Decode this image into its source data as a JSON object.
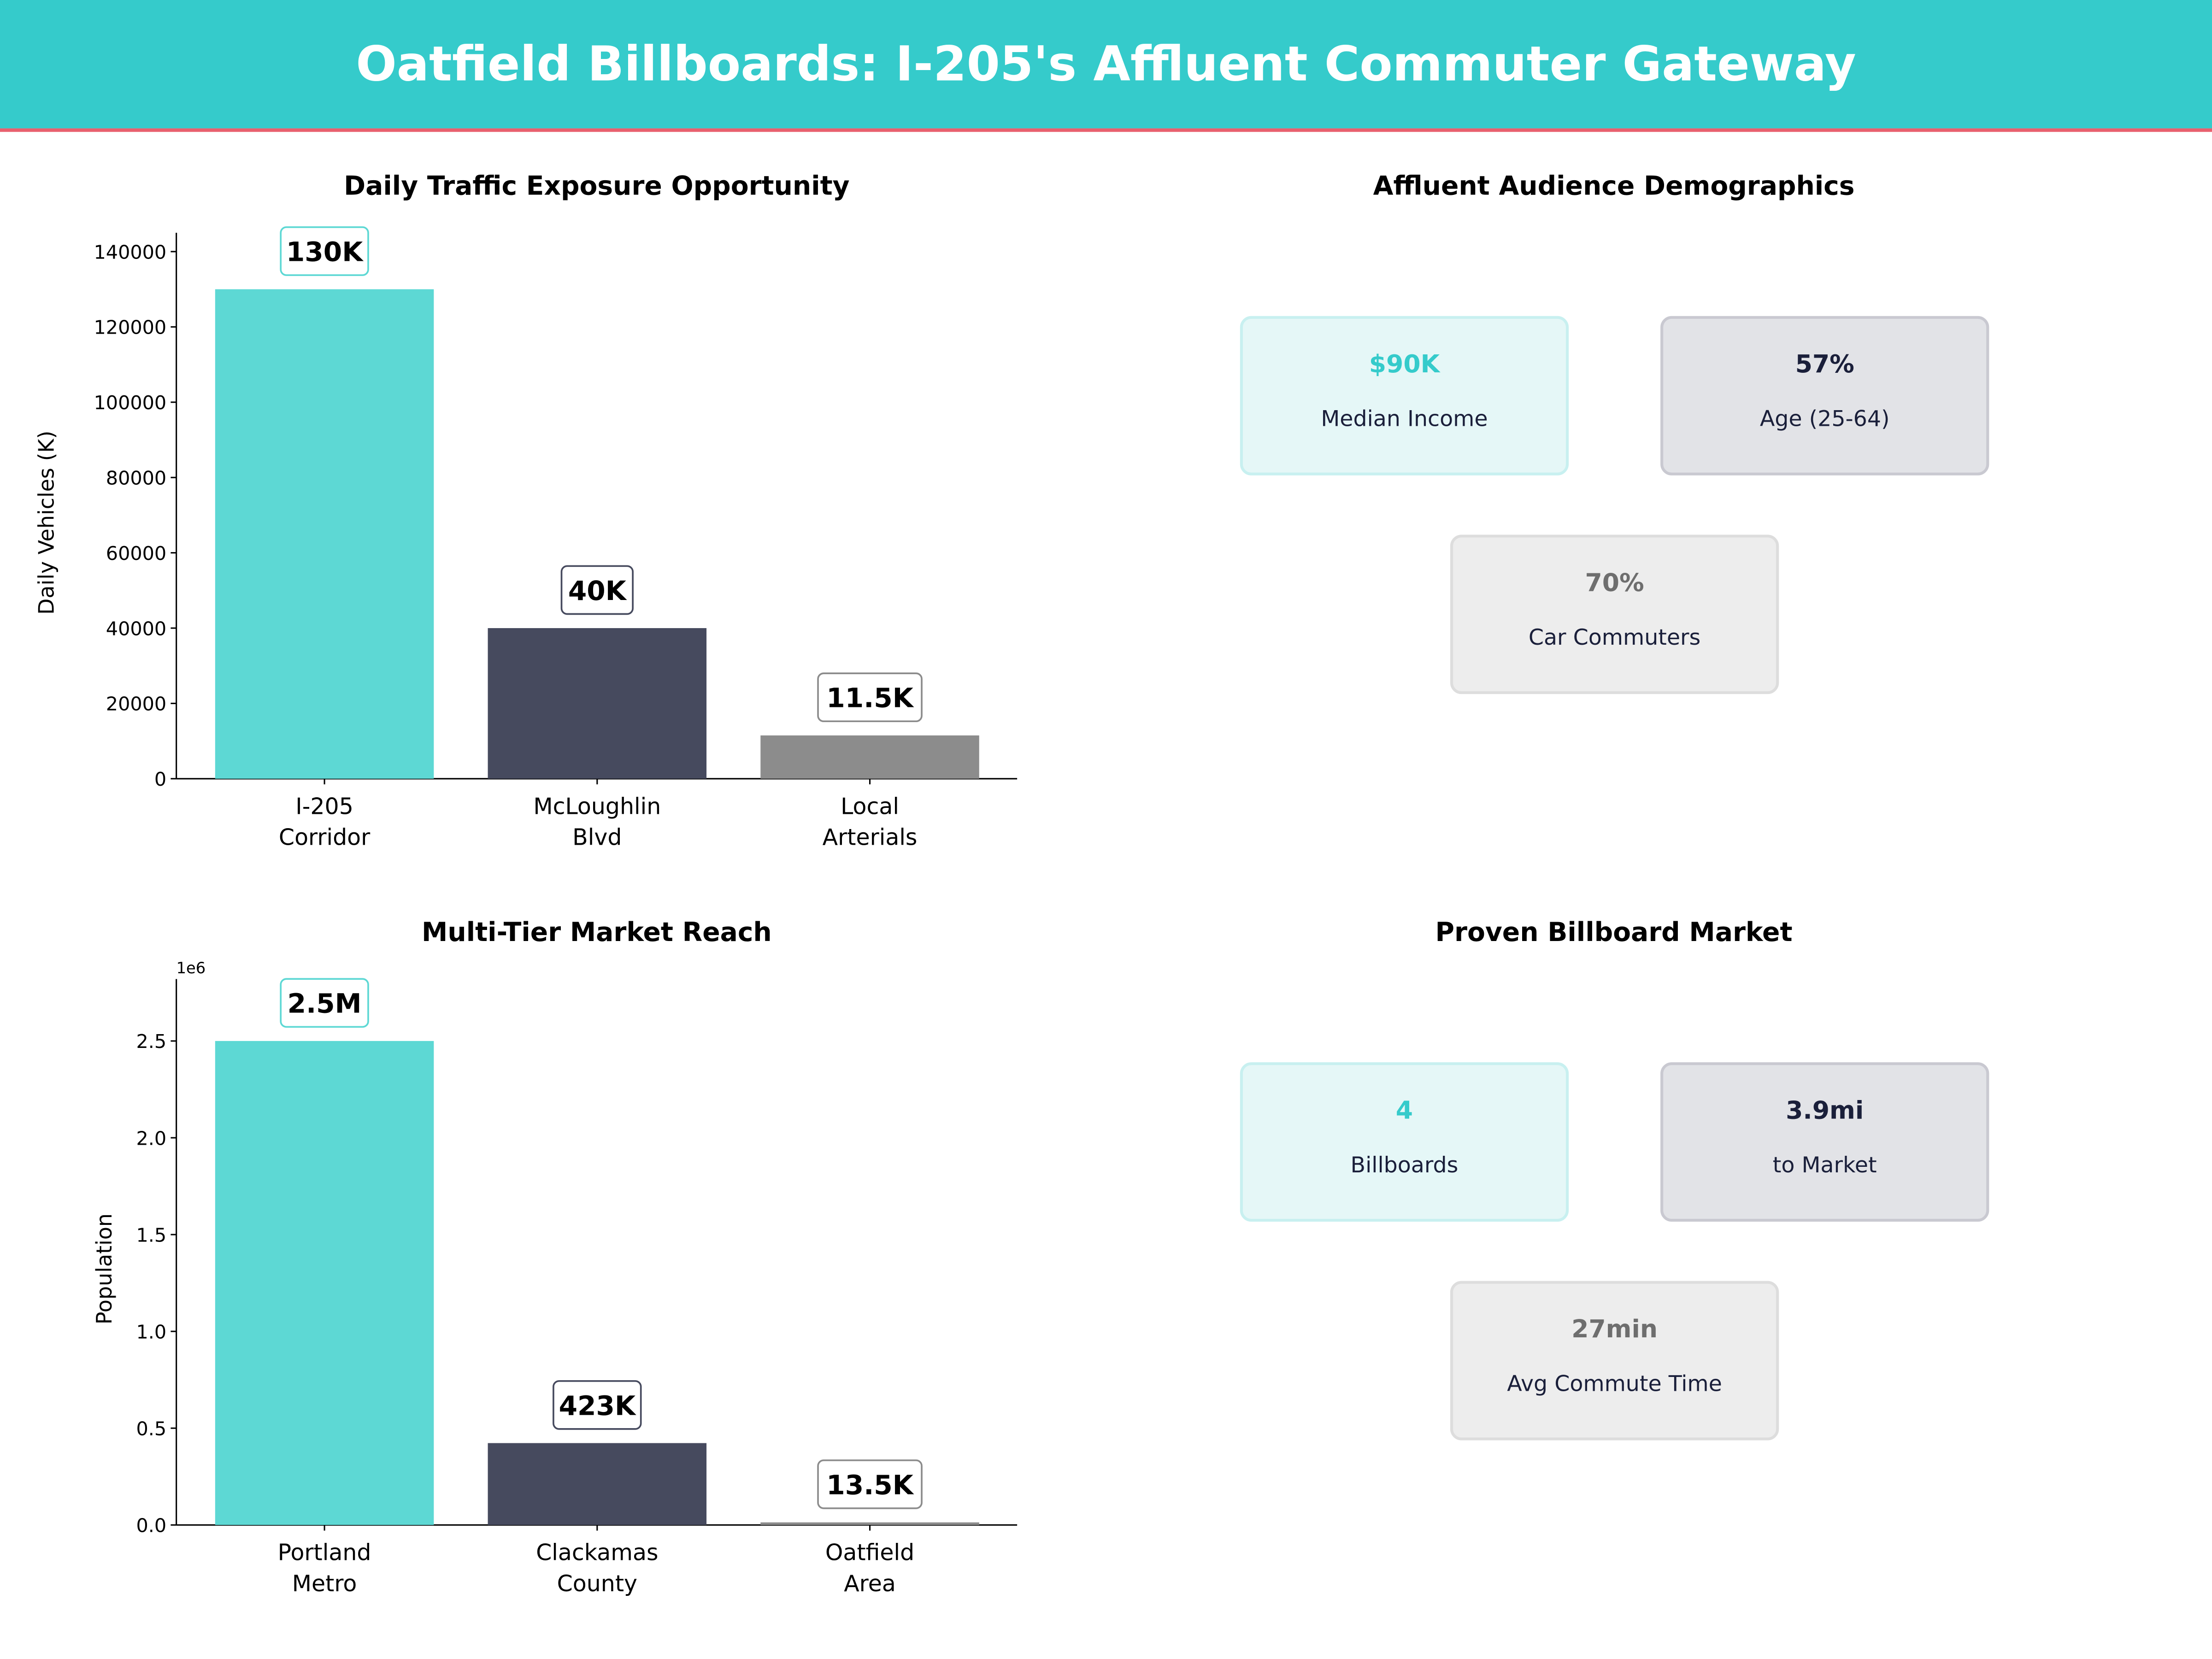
{
  "header": {
    "title": "Oatfield Billboards: I-205's Affluent Commuter Gateway",
    "bg_color": "#35CBCB",
    "accent_line": "#E8606E"
  },
  "chart_data": [
    {
      "type": "bar",
      "title": "Daily Traffic Exposure Opportunity",
      "ylabel": "Daily Vehicles (K)",
      "xlabel": "",
      "categories": [
        "I-205\nCorridor",
        "McLoughlin\nBlvd",
        "Local\nArterials"
      ],
      "values": [
        130000,
        40000,
        11500
      ],
      "data_labels": [
        "130K",
        "40K",
        "11.5K"
      ],
      "colors": [
        "#5DD8D4",
        "#464A5E",
        "#8C8C8C"
      ],
      "yticks": [
        0,
        20000,
        40000,
        60000,
        80000,
        100000,
        120000,
        140000
      ],
      "ylim": [
        0,
        145000
      ],
      "offset_text": "",
      "grid": false
    },
    {
      "type": "bar",
      "title": "Multi-Tier Market Reach",
      "ylabel": "Population",
      "xlabel": "",
      "categories": [
        "Portland\nMetro",
        "Clackamas\nCounty",
        "Oatfield\nArea"
      ],
      "values": [
        2500000,
        423000,
        13500
      ],
      "data_labels": [
        "2.5M",
        "423K",
        "13.5K"
      ],
      "colors": [
        "#5DD8D4",
        "#464A5E",
        "#8C8C8C"
      ],
      "yticks": [
        0,
        500000,
        1000000,
        1500000,
        2000000,
        2500000
      ],
      "ytick_labels": [
        "0.0",
        "0.5",
        "1.0",
        "1.5",
        "2.0",
        "2.5"
      ],
      "ylim": [
        0,
        2820000
      ],
      "offset_text": "1e6",
      "grid": false
    }
  ],
  "panels": [
    {
      "title": "Affluent Audience Demographics",
      "cards": [
        {
          "value": "$90K",
          "label": "Median Income",
          "style": "teal"
        },
        {
          "value": "57%",
          "label": "Age (25-64)",
          "style": "dark"
        },
        {
          "value": "70%",
          "label": "Car Commuters",
          "style": "gray"
        }
      ]
    },
    {
      "title": "Proven Billboard Market",
      "cards": [
        {
          "value": "4",
          "label": "Billboards",
          "style": "teal"
        },
        {
          "value": "3.9mi",
          "label": "to Market",
          "style": "dark"
        },
        {
          "value": "27min",
          "label": "Avg Commute Time",
          "style": "gray"
        }
      ]
    }
  ],
  "card_styles": {
    "teal": {
      "fill": "#E5F7F7",
      "stroke": "#C8F0F0",
      "value_color": "#35CBCB"
    },
    "dark": {
      "fill": "#E2E3E7",
      "stroke": "#C9C9D1",
      "value_color": "#1A1F3A"
    },
    "gray": {
      "fill": "#EDEDED",
      "stroke": "#DDDDDD",
      "value_color": "#6E6E6E"
    }
  }
}
